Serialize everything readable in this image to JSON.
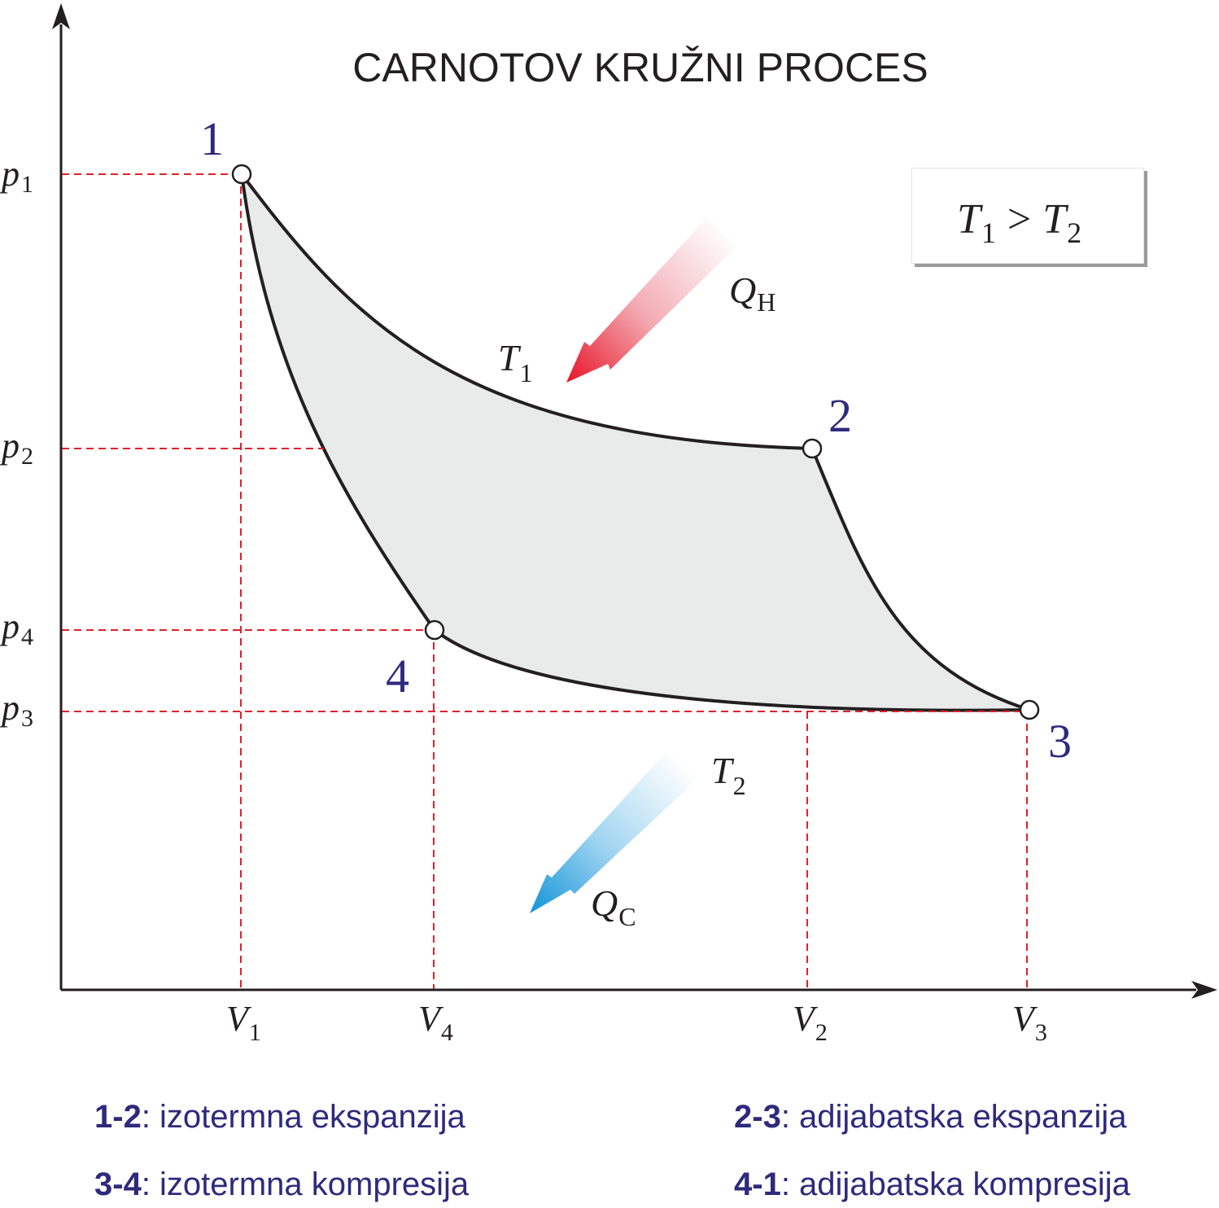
{
  "title": "CARNOTOV KRUŽNI PROCES",
  "condition": {
    "left": "T",
    "left_sub": "1",
    "op": ">",
    "right": "T",
    "right_sub": "2"
  },
  "points": [
    {
      "id": "1",
      "label": "1"
    },
    {
      "id": "2",
      "label": "2"
    },
    {
      "id": "3",
      "label": "3"
    },
    {
      "id": "4",
      "label": "4"
    }
  ],
  "pressure_labels": [
    {
      "sym": "p",
      "sub": "1"
    },
    {
      "sym": "p",
      "sub": "2"
    },
    {
      "sym": "p",
      "sub": "4"
    },
    {
      "sym": "p",
      "sub": "3"
    }
  ],
  "volume_labels": [
    {
      "sym": "V",
      "sub": "1"
    },
    {
      "sym": "V",
      "sub": "4"
    },
    {
      "sym": "V",
      "sub": "2"
    },
    {
      "sym": "V",
      "sub": "3"
    }
  ],
  "isotherm_labels": {
    "hot": {
      "sym": "T",
      "sub": "1"
    },
    "cold": {
      "sym": "T",
      "sub": "2"
    }
  },
  "heat_labels": {
    "in": {
      "sym": "Q",
      "sub": "H"
    },
    "out": {
      "sym": "Q",
      "sub": "C"
    }
  },
  "legend": [
    {
      "key": "1-2",
      "text": ": izotermna ekspanzija"
    },
    {
      "key": "2-3",
      "text": ": adijabatska ekspanzija"
    },
    {
      "key": "3-4",
      "text": ": izotermna kompresija"
    },
    {
      "key": "4-1",
      "text": ": adijabatska kompresija"
    }
  ],
  "colors": {
    "cycle_fill": "#e9eaea",
    "guide_lines": "#e0212b",
    "point_labels": "#2e2a7c",
    "hot_arrow": "#e8192c",
    "cold_arrow": "#1796d8"
  }
}
